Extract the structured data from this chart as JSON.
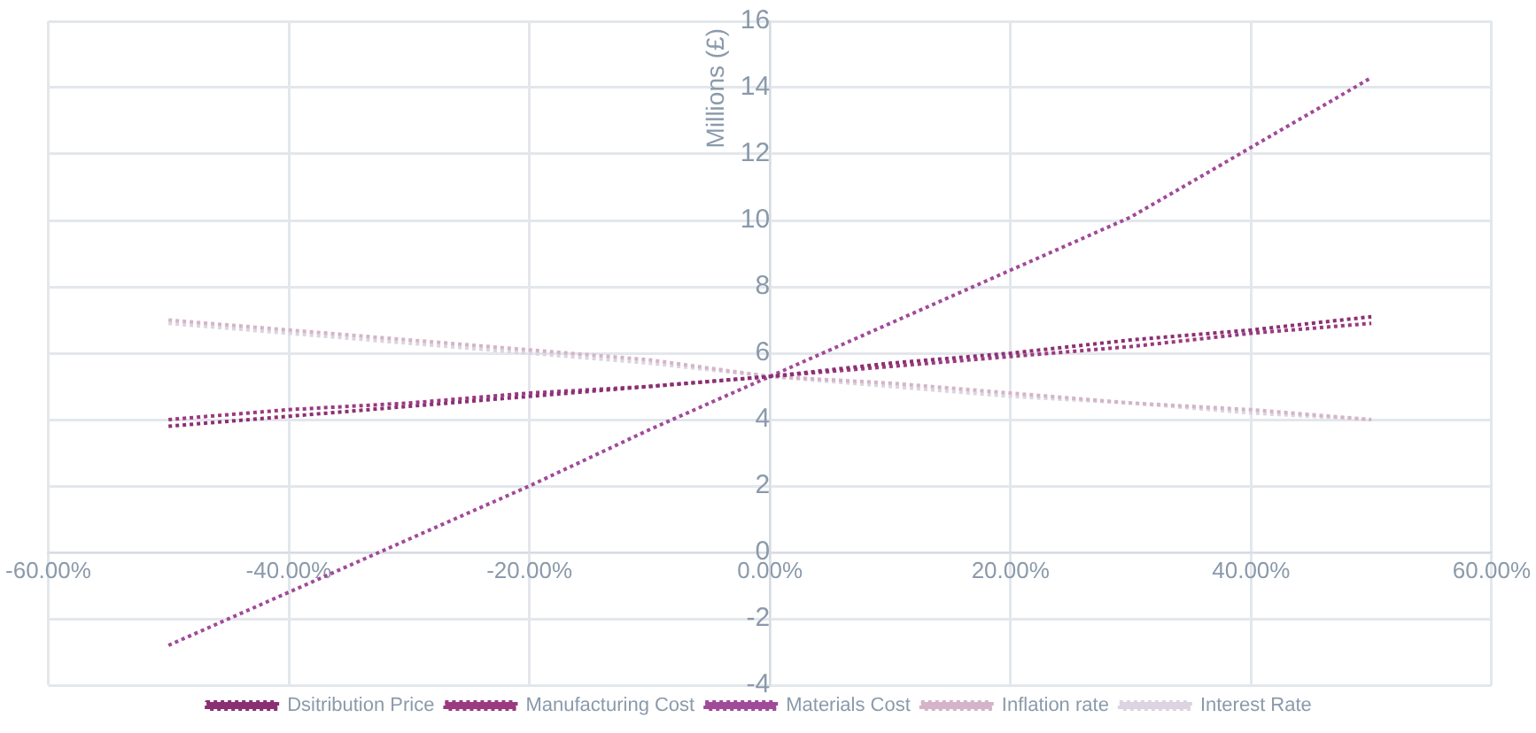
{
  "chart_data": {
    "type": "line",
    "ylabel": "Millions (£)",
    "x": [
      -50,
      -40,
      -30,
      -20,
      -10,
      0,
      10,
      20,
      30,
      40,
      50
    ],
    "xlim": [
      -60,
      60
    ],
    "xticks": [
      {
        "value": -60,
        "label": "-60.00%"
      },
      {
        "value": -40,
        "label": "-40.00%"
      },
      {
        "value": -20,
        "label": "-20.00%"
      },
      {
        "value": 0,
        "label": "0.00%"
      },
      {
        "value": 20,
        "label": "20.00%"
      },
      {
        "value": 40,
        "label": "40.00%"
      },
      {
        "value": 60,
        "label": "60.00%"
      }
    ],
    "ylim": [
      -4,
      16
    ],
    "yticks": [
      -4,
      -2,
      0,
      2,
      4,
      6,
      8,
      10,
      12,
      14,
      16
    ],
    "grid": true,
    "legend": "bottom",
    "marker": "none",
    "line_style": "dotted",
    "series": [
      {
        "name": "Dsitribution Price",
        "color": "#8b2f73",
        "values": [
          3.8,
          4.1,
          4.4,
          4.7,
          5.0,
          5.3,
          5.7,
          6.0,
          6.4,
          6.7,
          7.1
        ]
      },
      {
        "name": "Manufacturing Cost",
        "color": "#9a3a80",
        "values": [
          4.0,
          4.3,
          4.5,
          4.8,
          5.0,
          5.3,
          5.6,
          5.9,
          6.2,
          6.6,
          6.9
        ]
      },
      {
        "name": "Materials Cost",
        "color": "#a04a9a",
        "values": [
          -2.8,
          -1.2,
          0.4,
          2.0,
          3.7,
          5.3,
          6.9,
          8.5,
          10.1,
          12.2,
          14.3
        ]
      },
      {
        "name": "Inflation rate",
        "color": "#d4b4c8",
        "values": [
          7.0,
          6.7,
          6.4,
          6.1,
          5.8,
          5.3,
          5.1,
          4.8,
          4.5,
          4.3,
          4.0
        ]
      },
      {
        "name": "Interest Rate",
        "color": "#dcd4e0",
        "values": [
          6.9,
          6.6,
          6.3,
          6.0,
          5.7,
          5.3,
          5.0,
          4.7,
          4.5,
          4.2,
          4.0
        ]
      }
    ]
  }
}
